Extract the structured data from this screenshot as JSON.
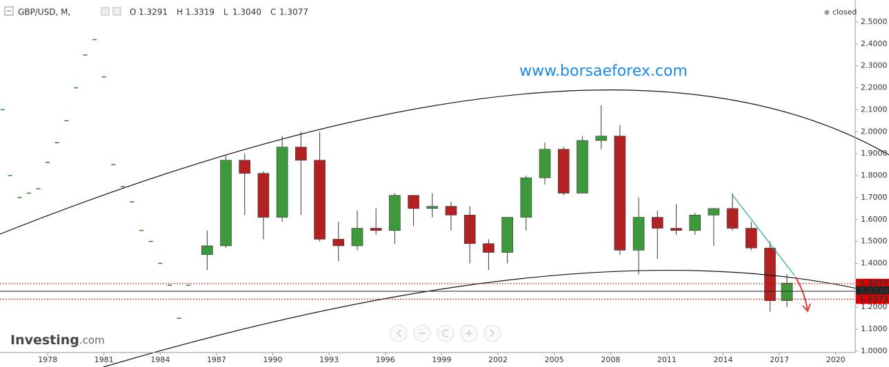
{
  "chart_data": {
    "type": "candlestick",
    "symbol": "GBP/USD, M,",
    "ohlc_labels": [
      "O",
      "H",
      "L",
      "C"
    ],
    "ohlc_values": [
      1.3291,
      1.3319,
      1.304,
      1.3077
    ],
    "ohlc_value_labels": [
      "1.3291",
      "1.3319",
      "1.3040",
      "1.3077"
    ],
    "status": "closed",
    "watermark": "www.borsaeforex.com",
    "brand": "Investing",
    "brand_suffix": ".com",
    "up_color": "#3c9a3c",
    "down_color": "#b22222",
    "candles": {
      "x": [
        1986.5,
        1987.5,
        1988.5,
        1989.5,
        1990.5,
        1991.5,
        1992.5,
        1993.5,
        1994.5,
        1995.5,
        1996.5,
        1997.5,
        1998.5,
        1999.5,
        2000.5,
        2001.5,
        2002.5,
        2003.5,
        2004.5,
        2005.5,
        2006.5,
        2007.5,
        2008.5,
        2009.5,
        2010.5,
        2011.5,
        2012.5,
        2013.5,
        2014.5,
        2015.5,
        2016.5,
        2017.4
      ],
      "open": [
        1.44,
        1.48,
        1.87,
        1.81,
        1.61,
        1.93,
        1.87,
        1.51,
        1.48,
        1.56,
        1.55,
        1.71,
        1.65,
        1.66,
        1.62,
        1.49,
        1.45,
        1.61,
        1.79,
        1.92,
        1.72,
        1.96,
        1.98,
        1.46,
        1.61,
        1.56,
        1.55,
        1.62,
        1.65,
        1.56,
        1.47,
        1.23
      ],
      "high": [
        1.55,
        1.89,
        1.9,
        1.82,
        1.98,
        2.0,
        2.0,
        1.59,
        1.64,
        1.65,
        1.72,
        1.71,
        1.72,
        1.68,
        1.66,
        1.51,
        1.58,
        1.8,
        1.95,
        1.93,
        1.98,
        2.12,
        2.03,
        1.7,
        1.64,
        1.67,
        1.63,
        1.65,
        1.72,
        1.59,
        1.5,
        1.35
      ],
      "low": [
        1.37,
        1.47,
        1.62,
        1.51,
        1.59,
        1.62,
        1.5,
        1.41,
        1.46,
        1.53,
        1.49,
        1.57,
        1.61,
        1.55,
        1.4,
        1.37,
        1.4,
        1.55,
        1.76,
        1.71,
        1.72,
        1.92,
        1.44,
        1.35,
        1.42,
        1.53,
        1.53,
        1.48,
        1.55,
        1.46,
        1.18,
        1.2
      ],
      "close": [
        1.48,
        1.87,
        1.81,
        1.61,
        1.93,
        1.87,
        1.51,
        1.48,
        1.56,
        1.55,
        1.71,
        1.65,
        1.66,
        1.62,
        1.49,
        1.45,
        1.61,
        1.79,
        1.92,
        1.72,
        1.96,
        1.98,
        1.46,
        1.61,
        1.56,
        1.55,
        1.62,
        1.65,
        1.56,
        1.47,
        1.23,
        1.31
      ]
    },
    "dots": {
      "color": "#2e7d32",
      "x": [
        1975.6,
        1976.0,
        1976.5,
        1977.0,
        1977.5,
        1978.0,
        1978.5,
        1979.0,
        1979.5,
        1980.0,
        1980.5,
        1981.0,
        1981.5,
        1982.0,
        1982.5,
        1983.0,
        1983.5,
        1984.0,
        1984.5,
        1985.0,
        1985.5
      ],
      "values": [
        2.1,
        1.8,
        1.7,
        1.72,
        1.74,
        1.86,
        1.95,
        2.05,
        2.2,
        2.35,
        2.42,
        2.25,
        1.85,
        1.75,
        1.68,
        1.55,
        1.5,
        1.4,
        1.3,
        1.15,
        1.3
      ]
    },
    "price_levels": [
      {
        "value": 1.3077,
        "color": "#e00000"
      },
      {
        "value": 1.2729,
        "color": "#222222"
      },
      {
        "value": 1.2371,
        "color": "#e00000"
      }
    ],
    "xlim": [
      1975.46,
      2021.04
    ],
    "xticks": [
      1978,
      1981,
      1984,
      1987,
      1990,
      1993,
      1996,
      1999,
      2002,
      2005,
      2008,
      2011,
      2014,
      2017,
      2020
    ],
    "ylim": [
      0.9935,
      2.6004
    ],
    "yticks": [
      {
        "value": 1.0,
        "label": "1.0000"
      },
      {
        "value": 1.1,
        "label": "1.1000"
      },
      {
        "value": 1.2,
        "label": "1.2000"
      },
      {
        "value": 1.3,
        "label": "1.3000"
      },
      {
        "value": 1.4,
        "label": "1.4000"
      },
      {
        "value": 1.5,
        "label": "1.5000"
      },
      {
        "value": 1.6,
        "label": "1.6000"
      },
      {
        "value": 1.7,
        "label": "1.7000"
      },
      {
        "value": 1.8,
        "label": "1.8000"
      },
      {
        "value": 1.9,
        "label": "1.9000"
      },
      {
        "value": 2.0,
        "label": "2.0000"
      },
      {
        "value": 2.1,
        "label": "2.1000"
      },
      {
        "value": 2.2,
        "label": "2.2000"
      },
      {
        "value": 2.3,
        "label": "2.3000"
      },
      {
        "value": 2.4,
        "label": "2.4000"
      },
      {
        "value": 2.5,
        "label": "2.5000"
      }
    ],
    "grid": false
  }
}
